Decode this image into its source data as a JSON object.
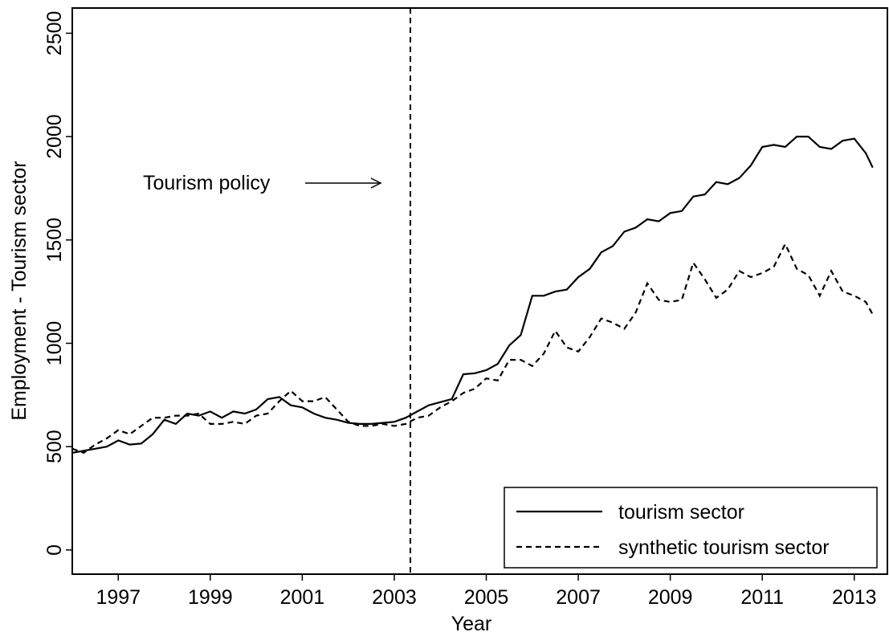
{
  "chart_data": {
    "type": "line",
    "xlabel": "Year",
    "ylabel": "Employment - Tourism sector",
    "annotation": "Tourism policy",
    "vline": 2003.35,
    "x": [
      1996.0,
      1996.25,
      1996.5,
      1996.75,
      1997.0,
      1997.25,
      1997.5,
      1997.75,
      1998.0,
      1998.25,
      1998.5,
      1998.75,
      1999.0,
      1999.25,
      1999.5,
      1999.75,
      2000.0,
      2000.25,
      2000.5,
      2000.75,
      2001.0,
      2001.25,
      2001.5,
      2001.75,
      2002.0,
      2002.25,
      2002.5,
      2002.75,
      2003.0,
      2003.25,
      2003.5,
      2003.75,
      2004.0,
      2004.25,
      2004.5,
      2004.75,
      2005.0,
      2005.25,
      2005.5,
      2005.75,
      2006.0,
      2006.25,
      2006.5,
      2006.75,
      2007.0,
      2007.25,
      2007.5,
      2007.75,
      2008.0,
      2008.25,
      2008.5,
      2008.75,
      2009.0,
      2009.25,
      2009.5,
      2009.75,
      2010.0,
      2010.25,
      2010.5,
      2010.75,
      2011.0,
      2011.25,
      2011.5,
      2011.75,
      2012.0,
      2012.25,
      2012.5,
      2012.75,
      2013.0,
      2013.25,
      2013.4
    ],
    "series": [
      {
        "name": "tourism sector",
        "color": "#000000",
        "dash": false,
        "values": [
          470,
          480,
          490,
          500,
          530,
          510,
          515,
          560,
          630,
          610,
          660,
          650,
          670,
          640,
          670,
          660,
          680,
          730,
          740,
          700,
          690,
          660,
          640,
          630,
          615,
          610,
          610,
          615,
          620,
          640,
          670,
          700,
          715,
          730,
          850,
          855,
          870,
          900,
          990,
          1040,
          1230,
          1230,
          1250,
          1260,
          1320,
          1360,
          1440,
          1470,
          1540,
          1560,
          1600,
          1590,
          1630,
          1640,
          1710,
          1720,
          1780,
          1770,
          1800,
          1860,
          1950,
          1960,
          1950,
          2000,
          2000,
          1950,
          1940,
          1980,
          1990,
          1920,
          1850
        ]
      },
      {
        "name": "synthetic tourism sector",
        "color": "#000000",
        "dash": true,
        "values": [
          490,
          470,
          510,
          540,
          580,
          560,
          600,
          640,
          640,
          650,
          650,
          660,
          610,
          610,
          620,
          610,
          650,
          660,
          720,
          770,
          720,
          720,
          740,
          680,
          620,
          600,
          600,
          610,
          600,
          610,
          640,
          650,
          690,
          720,
          760,
          780,
          830,
          820,
          920,
          920,
          890,
          950,
          1060,
          980,
          960,
          1030,
          1120,
          1100,
          1070,
          1150,
          1290,
          1210,
          1200,
          1210,
          1390,
          1310,
          1220,
          1260,
          1350,
          1320,
          1340,
          1370,
          1480,
          1360,
          1330,
          1230,
          1350,
          1250,
          1230,
          1200,
          1140
        ]
      }
    ],
    "xlim": [
      1996.0,
      2013.72
    ],
    "ylim": [
      -117,
      2622
    ],
    "xticks": [
      1997,
      1999,
      2001,
      2003,
      2005,
      2007,
      2009,
      2011,
      2013
    ],
    "yticks": [
      0,
      500,
      1000,
      1500,
      2000,
      2500
    ],
    "legend": "bottom-right"
  }
}
